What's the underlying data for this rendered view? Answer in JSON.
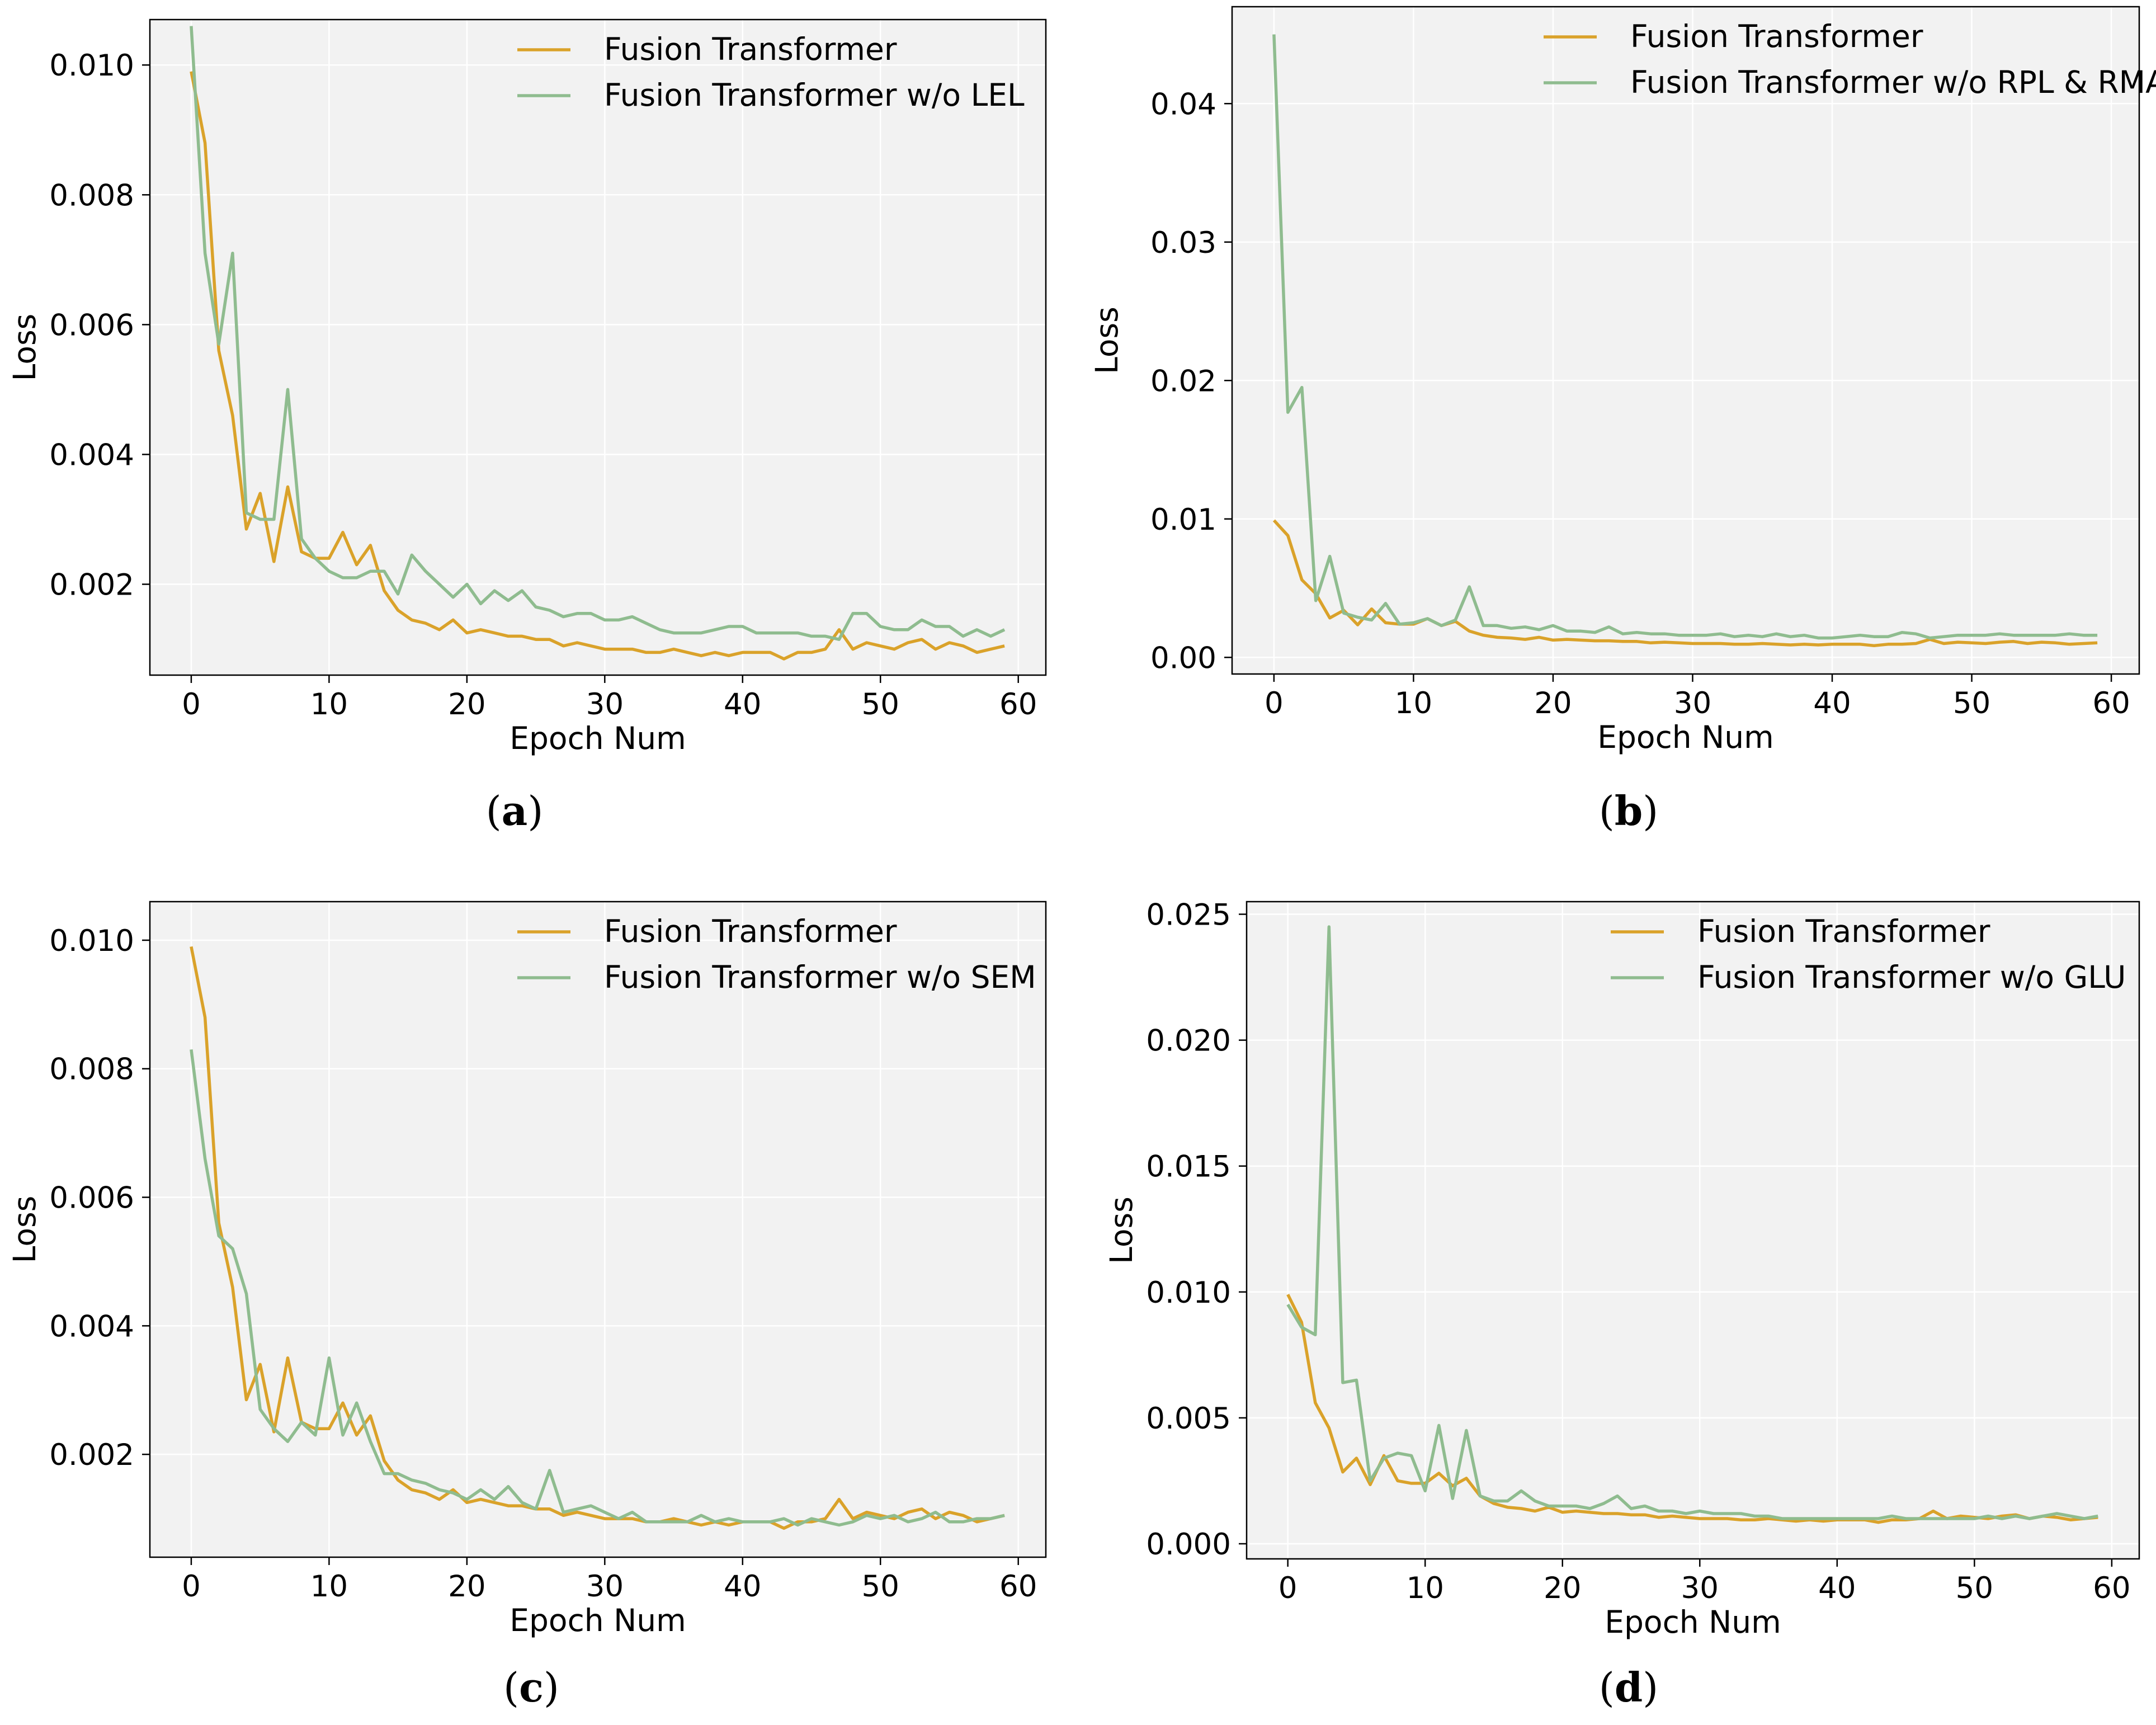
{
  "colors": {
    "series_main": "#DAA22A",
    "series_ablation": "#8FBC8F",
    "plot_background": "#F2F2F2",
    "grid": "#FFFFFF"
  },
  "chart_data": [
    {
      "type": "line",
      "caption_letter": "a",
      "xlabel": "Epoch Num",
      "ylabel": "Loss",
      "xlim": [
        -3,
        62
      ],
      "ylim": [
        0.0006,
        0.0107
      ],
      "xticks": [
        0,
        10,
        20,
        30,
        40,
        50,
        60
      ],
      "yticks": [
        0.002,
        0.004,
        0.006,
        0.008,
        0.01
      ],
      "ytick_labels": [
        "0.002",
        "0.004",
        "0.006",
        "0.008",
        "0.010"
      ],
      "legend_position": "top-right",
      "series": [
        {
          "name": "Fusion Transformer",
          "values": [
            0.0099,
            0.0088,
            0.0056,
            0.0046,
            0.00285,
            0.0034,
            0.00235,
            0.0035,
            0.0025,
            0.0024,
            0.0024,
            0.0028,
            0.0023,
            0.0026,
            0.0019,
            0.0016,
            0.00145,
            0.0014,
            0.0013,
            0.00145,
            0.00125,
            0.0013,
            0.00125,
            0.0012,
            0.0012,
            0.00115,
            0.00115,
            0.00105,
            0.0011,
            0.00105,
            0.001,
            0.001,
            0.001,
            0.00095,
            0.00095,
            0.001,
            0.00095,
            0.0009,
            0.00095,
            0.0009,
            0.00095,
            0.00095,
            0.00095,
            0.00085,
            0.00095,
            0.00095,
            0.001,
            0.0013,
            0.001,
            0.0011,
            0.00105,
            0.001,
            0.0011,
            0.00115,
            0.001,
            0.0011,
            0.00105,
            0.00095,
            0.001,
            0.00105
          ]
        },
        {
          "name": "Fusion Transformer w/o LEL",
          "values": [
            0.0106,
            0.0071,
            0.0057,
            0.0071,
            0.0031,
            0.003,
            0.003,
            0.005,
            0.0027,
            0.0024,
            0.0022,
            0.0021,
            0.0021,
            0.0022,
            0.0022,
            0.00185,
            0.00245,
            0.0022,
            0.002,
            0.0018,
            0.002,
            0.0017,
            0.0019,
            0.00175,
            0.0019,
            0.00165,
            0.0016,
            0.0015,
            0.00155,
            0.00155,
            0.00145,
            0.00145,
            0.0015,
            0.0014,
            0.0013,
            0.00125,
            0.00125,
            0.00125,
            0.0013,
            0.00135,
            0.00135,
            0.00125,
            0.00125,
            0.00125,
            0.00125,
            0.0012,
            0.0012,
            0.00115,
            0.00155,
            0.00155,
            0.00135,
            0.0013,
            0.0013,
            0.00145,
            0.00135,
            0.00135,
            0.0012,
            0.0013,
            0.0012,
            0.0013
          ]
        }
      ]
    },
    {
      "type": "line",
      "caption_letter": "b",
      "xlabel": "Epoch Num",
      "ylabel": "Loss",
      "xlim": [
        -3,
        62
      ],
      "ylim": [
        -0.0012,
        0.047
      ],
      "xticks": [
        0,
        10,
        20,
        30,
        40,
        50,
        60
      ],
      "yticks": [
        0.0,
        0.01,
        0.02,
        0.03,
        0.04
      ],
      "ytick_labels": [
        "0.00",
        "0.01",
        "0.02",
        "0.03",
        "0.04"
      ],
      "legend_position": "top-right",
      "series": [
        {
          "name": "Fusion Transformer",
          "values": [
            0.0099,
            0.0088,
            0.0056,
            0.0046,
            0.00285,
            0.0034,
            0.00235,
            0.0035,
            0.0025,
            0.0024,
            0.0024,
            0.0028,
            0.0023,
            0.0026,
            0.0019,
            0.0016,
            0.00145,
            0.0014,
            0.0013,
            0.00145,
            0.00125,
            0.0013,
            0.00125,
            0.0012,
            0.0012,
            0.00115,
            0.00115,
            0.00105,
            0.0011,
            0.00105,
            0.001,
            0.001,
            0.001,
            0.00095,
            0.00095,
            0.001,
            0.00095,
            0.0009,
            0.00095,
            0.0009,
            0.00095,
            0.00095,
            0.00095,
            0.00085,
            0.00095,
            0.00095,
            0.001,
            0.0013,
            0.001,
            0.0011,
            0.00105,
            0.001,
            0.0011,
            0.00115,
            0.001,
            0.0011,
            0.00105,
            0.00095,
            0.001,
            0.00105
          ]
        },
        {
          "name": "Fusion Transformer w/o RPL & RMA",
          "values": [
            0.045,
            0.0177,
            0.0195,
            0.0041,
            0.0073,
            0.0032,
            0.0029,
            0.0027,
            0.0039,
            0.0024,
            0.0025,
            0.0028,
            0.0023,
            0.0027,
            0.0051,
            0.0023,
            0.0023,
            0.0021,
            0.0022,
            0.002,
            0.0023,
            0.0019,
            0.0019,
            0.0018,
            0.0022,
            0.0017,
            0.0018,
            0.0017,
            0.0017,
            0.0016,
            0.0016,
            0.0016,
            0.0017,
            0.0015,
            0.0016,
            0.0015,
            0.0017,
            0.0015,
            0.0016,
            0.0014,
            0.0014,
            0.0015,
            0.0016,
            0.0015,
            0.0015,
            0.0018,
            0.0017,
            0.0014,
            0.0015,
            0.0016,
            0.0016,
            0.0016,
            0.0017,
            0.0016,
            0.0016,
            0.0016,
            0.0016,
            0.0017,
            0.0016,
            0.0016
          ]
        }
      ]
    },
    {
      "type": "line",
      "caption_letter": "c",
      "xlabel": "Epoch Num",
      "ylabel": "Loss",
      "xlim": [
        -3,
        62
      ],
      "ylim": [
        0.0004,
        0.0106
      ],
      "xticks": [
        0,
        10,
        20,
        30,
        40,
        50,
        60
      ],
      "yticks": [
        0.002,
        0.004,
        0.006,
        0.008,
        0.01
      ],
      "ytick_labels": [
        "0.002",
        "0.004",
        "0.006",
        "0.008",
        "0.010"
      ],
      "legend_position": "top-right",
      "series": [
        {
          "name": "Fusion Transformer",
          "values": [
            0.0099,
            0.0088,
            0.0056,
            0.0046,
            0.00285,
            0.0034,
            0.00235,
            0.0035,
            0.0025,
            0.0024,
            0.0024,
            0.0028,
            0.0023,
            0.0026,
            0.0019,
            0.0016,
            0.00145,
            0.0014,
            0.0013,
            0.00145,
            0.00125,
            0.0013,
            0.00125,
            0.0012,
            0.0012,
            0.00115,
            0.00115,
            0.00105,
            0.0011,
            0.00105,
            0.001,
            0.001,
            0.001,
            0.00095,
            0.00095,
            0.001,
            0.00095,
            0.0009,
            0.00095,
            0.0009,
            0.00095,
            0.00095,
            0.00095,
            0.00085,
            0.00095,
            0.00095,
            0.001,
            0.0013,
            0.001,
            0.0011,
            0.00105,
            0.001,
            0.0011,
            0.00115,
            0.001,
            0.0011,
            0.00105,
            0.00095,
            0.001,
            0.00105
          ]
        },
        {
          "name": "Fusion Transformer w/o SEM",
          "values": [
            0.0083,
            0.0066,
            0.0054,
            0.0052,
            0.0045,
            0.0027,
            0.0024,
            0.0022,
            0.0025,
            0.0023,
            0.0035,
            0.0023,
            0.0028,
            0.0022,
            0.0017,
            0.0017,
            0.0016,
            0.00155,
            0.00145,
            0.0014,
            0.0013,
            0.00145,
            0.0013,
            0.0015,
            0.00125,
            0.00115,
            0.00175,
            0.0011,
            0.00115,
            0.0012,
            0.0011,
            0.001,
            0.0011,
            0.00095,
            0.00095,
            0.00095,
            0.00095,
            0.00105,
            0.00095,
            0.001,
            0.00095,
            0.00095,
            0.00095,
            0.001,
            0.0009,
            0.001,
            0.00095,
            0.0009,
            0.00095,
            0.00105,
            0.001,
            0.00105,
            0.00095,
            0.001,
            0.0011,
            0.00095,
            0.00095,
            0.001,
            0.001,
            0.00105
          ]
        }
      ]
    },
    {
      "type": "line",
      "caption_letter": "d",
      "xlabel": "Epoch Num",
      "ylabel": "Loss",
      "xlim": [
        -3,
        62
      ],
      "ylim": [
        -0.0006,
        0.0255
      ],
      "xticks": [
        0,
        10,
        20,
        30,
        40,
        50,
        60
      ],
      "yticks": [
        0.0,
        0.005,
        0.01,
        0.015,
        0.02,
        0.025
      ],
      "ytick_labels": [
        "0.000",
        "0.005",
        "0.010",
        "0.015",
        "0.020",
        "0.025"
      ],
      "legend_position": "top-right",
      "series": [
        {
          "name": "Fusion Transformer",
          "values": [
            0.0099,
            0.0088,
            0.0056,
            0.0046,
            0.00285,
            0.0034,
            0.00235,
            0.0035,
            0.0025,
            0.0024,
            0.0024,
            0.0028,
            0.0023,
            0.0026,
            0.0019,
            0.0016,
            0.00145,
            0.0014,
            0.0013,
            0.00145,
            0.00125,
            0.0013,
            0.00125,
            0.0012,
            0.0012,
            0.00115,
            0.00115,
            0.00105,
            0.0011,
            0.00105,
            0.001,
            0.001,
            0.001,
            0.00095,
            0.00095,
            0.001,
            0.00095,
            0.0009,
            0.00095,
            0.0009,
            0.00095,
            0.00095,
            0.00095,
            0.00085,
            0.00095,
            0.00095,
            0.001,
            0.0013,
            0.001,
            0.0011,
            0.00105,
            0.001,
            0.0011,
            0.00115,
            0.001,
            0.0011,
            0.00105,
            0.00095,
            0.001,
            0.00105
          ]
        },
        {
          "name": "Fusion Transformer w/o GLU",
          "values": [
            0.0095,
            0.0086,
            0.0083,
            0.0245,
            0.0064,
            0.0065,
            0.0025,
            0.0034,
            0.0036,
            0.0035,
            0.0021,
            0.0047,
            0.0018,
            0.0045,
            0.0019,
            0.0017,
            0.0017,
            0.0021,
            0.0017,
            0.0015,
            0.0015,
            0.0015,
            0.0014,
            0.0016,
            0.0019,
            0.0014,
            0.0015,
            0.0013,
            0.0013,
            0.0012,
            0.0013,
            0.0012,
            0.0012,
            0.0012,
            0.0011,
            0.0011,
            0.001,
            0.001,
            0.001,
            0.001,
            0.001,
            0.001,
            0.001,
            0.001,
            0.0011,
            0.001,
            0.001,
            0.001,
            0.001,
            0.001,
            0.001,
            0.0011,
            0.001,
            0.0011,
            0.001,
            0.0011,
            0.0012,
            0.0011,
            0.001,
            0.0011
          ]
        }
      ]
    }
  ]
}
